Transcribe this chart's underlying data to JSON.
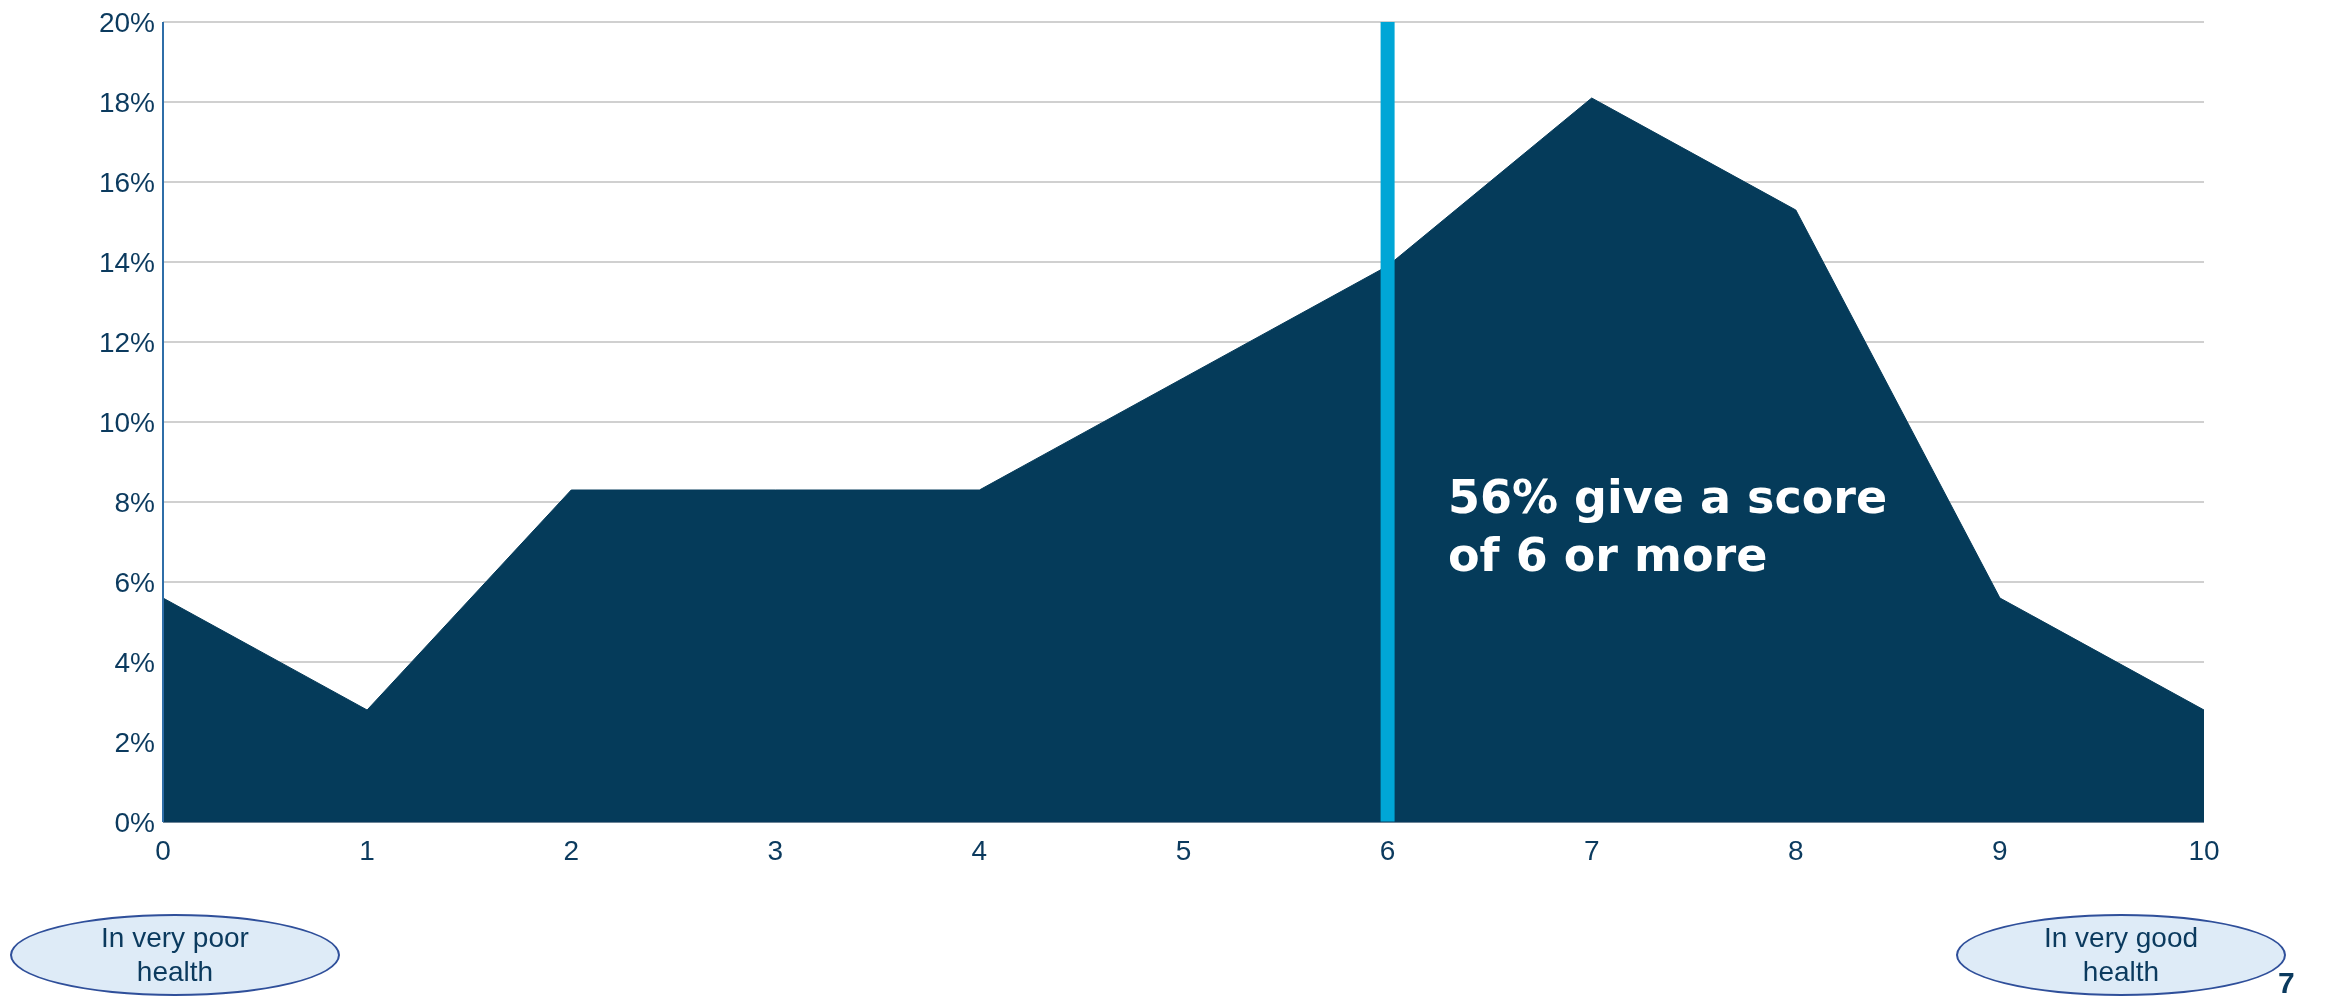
{
  "chart_data": {
    "type": "area",
    "x": [
      0,
      1,
      2,
      3,
      4,
      5,
      6,
      7,
      8,
      9,
      10
    ],
    "series": [
      {
        "color": "#053b5a",
        "values": [
          5.6,
          2.8,
          8.3,
          8.3,
          8.3,
          11.1,
          13.9,
          18.1,
          15.3,
          5.6,
          2.8
        ]
      }
    ],
    "xlim": [
      0,
      10
    ],
    "xticks": [
      0,
      1,
      2,
      3,
      4,
      5,
      6,
      7,
      8,
      9,
      10
    ],
    "ylim": [
      0,
      20
    ],
    "yticks": [
      {
        "value": 0,
        "label": "0%"
      },
      {
        "value": 2,
        "label": "2%"
      },
      {
        "value": 4,
        "label": "4%"
      },
      {
        "value": 6,
        "label": "6%"
      },
      {
        "value": 8,
        "label": "8%"
      },
      {
        "value": 10,
        "label": "10%"
      },
      {
        "value": 12,
        "label": "12%"
      },
      {
        "value": 14,
        "label": "14%"
      },
      {
        "value": 16,
        "label": "16%"
      },
      {
        "value": 18,
        "label": "18%"
      },
      {
        "value": 20,
        "label": "20%"
      }
    ],
    "grid": "y",
    "legend": false,
    "ref_lines": [
      {
        "axis": "x",
        "value": 6,
        "color": "#00a6d6"
      }
    ],
    "annotations": [
      "56% give a score of 6 or more",
      "In very poor health",
      "In very good health",
      "7"
    ]
  }
}
